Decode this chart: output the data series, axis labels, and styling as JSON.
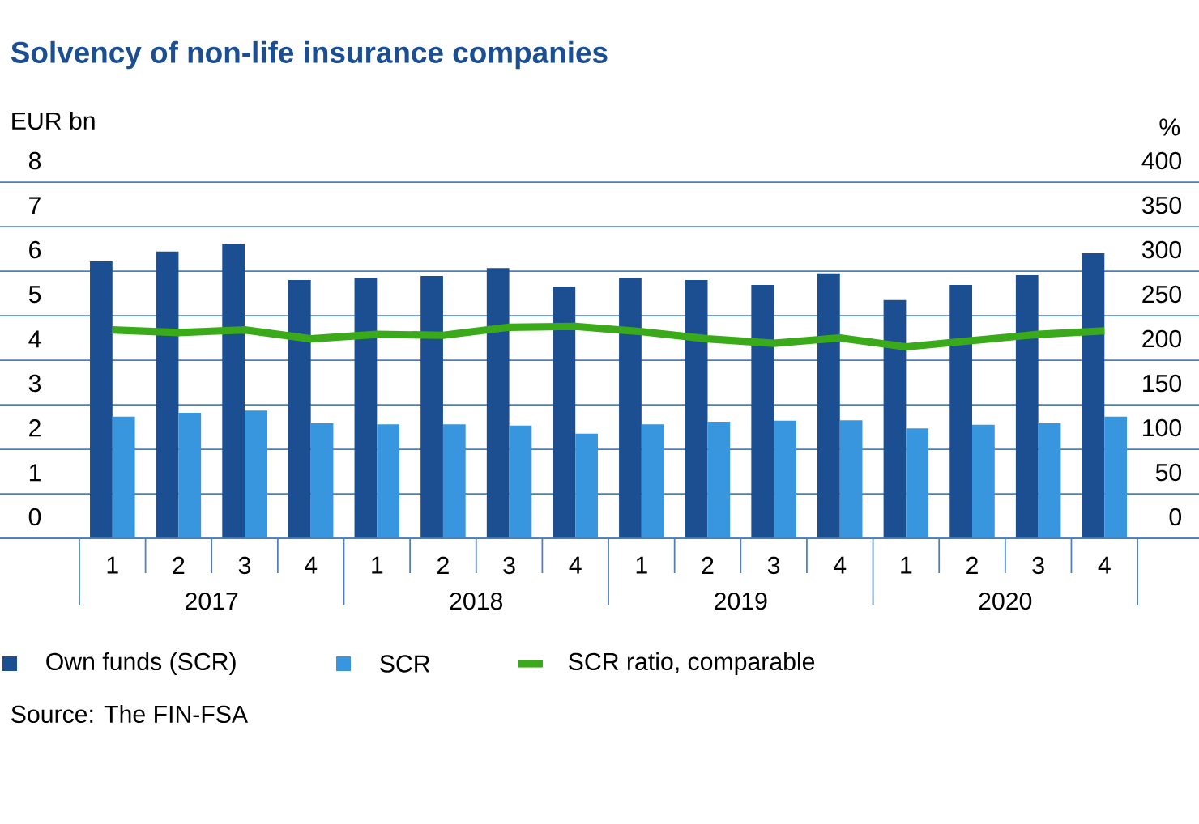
{
  "chart_data": {
    "type": "bar",
    "title": "Solvency of non-life insurance companies",
    "ylabel": "EUR bn",
    "y2label": "%",
    "categories": [
      "1",
      "2",
      "3",
      "4",
      "1",
      "2",
      "3",
      "4",
      "1",
      "2",
      "3",
      "4",
      "1",
      "2",
      "3",
      "4"
    ],
    "series": [
      {
        "name": "Own funds (SCR)",
        "color": "#1c4f91",
        "values": [
          6.22,
          6.44,
          6.62,
          5.8,
          5.84,
          5.89,
          6.07,
          5.65,
          5.84,
          5.8,
          5.69,
          5.95,
          5.35,
          5.69,
          5.91,
          6.4
        ]
      },
      {
        "name": "SCR",
        "color": "#3796dd",
        "values": [
          2.73,
          2.82,
          2.87,
          2.58,
          2.56,
          2.56,
          2.53,
          2.35,
          2.56,
          2.62,
          2.64,
          2.65,
          2.47,
          2.55,
          2.58,
          2.73
        ]
      },
      {
        "name": "SCR ratio, comparable",
        "type": "line",
        "axis": "y2",
        "color": "#3aaa1a",
        "values": [
          234,
          231,
          234,
          224,
          229,
          228,
          237,
          238,
          232,
          224,
          219,
          225,
          215,
          222,
          229,
          233
        ]
      }
    ],
    "ylim": [
      0,
      8
    ],
    "yticks": [
      0,
      1,
      2,
      3,
      4,
      5,
      6,
      7,
      8
    ],
    "y2lim": [
      0,
      400
    ],
    "y2ticks": [
      0,
      50,
      100,
      150,
      200,
      250,
      300,
      350,
      400
    ],
    "grid": "y",
    "legend": "bottom",
    "annotations": [
      "2017",
      "2018",
      "2019",
      "2020",
      "Source: The FIN-FSA"
    ]
  }
}
